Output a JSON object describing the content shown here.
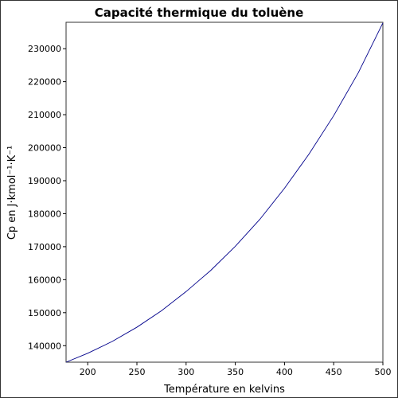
{
  "chart_data": {
    "type": "line",
    "title": "Capacité thermique du toluène",
    "xlabel": "Température en kelvins",
    "ylabel": "Cp en J·kmol⁻¹·K⁻¹",
    "xlim": [
      178,
      500
    ],
    "ylim": [
      135000,
      238000
    ],
    "x_ticks": [
      "200",
      "250",
      "300",
      "350",
      "400",
      "450",
      "500"
    ],
    "y_ticks": [
      "140000",
      "150000",
      "160000",
      "170000",
      "180000",
      "190000",
      "200000",
      "210000",
      "220000",
      "230000"
    ],
    "grid": false,
    "series": [
      {
        "color": "#00008b",
        "points": [
          [
            178,
            135000
          ],
          [
            200,
            137700
          ],
          [
            225,
            141300
          ],
          [
            250,
            145600
          ],
          [
            275,
            150600
          ],
          [
            300,
            156400
          ],
          [
            325,
            162800
          ],
          [
            350,
            170100
          ],
          [
            375,
            178300
          ],
          [
            400,
            187700
          ],
          [
            425,
            198100
          ],
          [
            450,
            209700
          ],
          [
            475,
            222700
          ],
          [
            500,
            237800
          ]
        ]
      }
    ]
  }
}
